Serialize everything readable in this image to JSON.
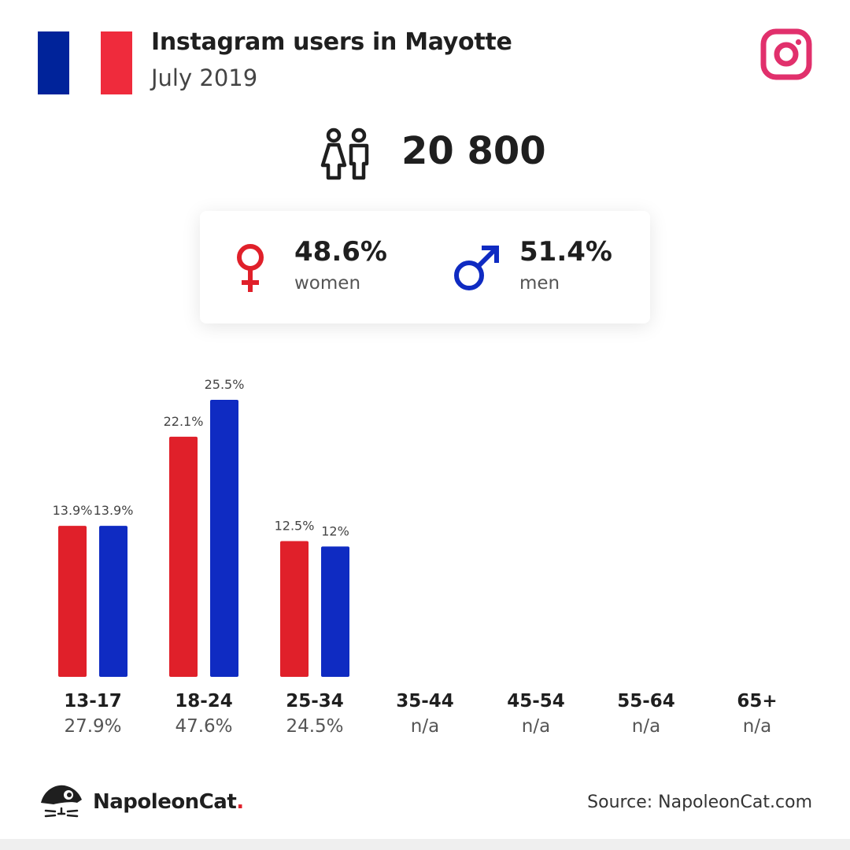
{
  "header": {
    "title": "Instagram users in Mayotte",
    "subtitle": "July 2019",
    "flag_colors": [
      "#00239a",
      "#ef2b3c"
    ],
    "platform_icon": "instagram-icon",
    "platform_color": "#e1306c"
  },
  "total": {
    "icon": "people-icon",
    "value": "20 800"
  },
  "gender": {
    "women": {
      "icon": "female-icon",
      "percent": "48.6%",
      "label": "women",
      "color": "#e0202a"
    },
    "men": {
      "icon": "male-icon",
      "percent": "51.4%",
      "label": "men",
      "color": "#0f2bc2"
    }
  },
  "chart_data": {
    "type": "bar",
    "categories": [
      "13-17",
      "18-24",
      "25-34",
      "35-44",
      "45-54",
      "55-64",
      "65+"
    ],
    "category_shares": [
      "27.9%",
      "47.6%",
      "24.5%",
      "n/a",
      "n/a",
      "n/a",
      "n/a"
    ],
    "series": [
      {
        "values": [
          13.9,
          22.1,
          12.5,
          null,
          null,
          null,
          null
        ],
        "labels": [
          "13.9%",
          "22.1%",
          "12.5%",
          null,
          null,
          null,
          null
        ],
        "color": "#e0202a"
      },
      {
        "values": [
          13.9,
          25.5,
          12,
          null,
          null,
          null,
          null
        ],
        "labels": [
          "13.9%",
          "25.5%",
          "12%",
          null,
          null,
          null,
          null
        ],
        "color": "#0f2bc2"
      }
    ],
    "ylim": [
      0,
      25.5
    ],
    "grid": false,
    "legend": "none"
  },
  "footer": {
    "brand": "NapoleonCat",
    "brand_dot": ".",
    "logo_icon": "napoleoncat-logo-icon",
    "source": "Source: NapoleonCat.com"
  }
}
